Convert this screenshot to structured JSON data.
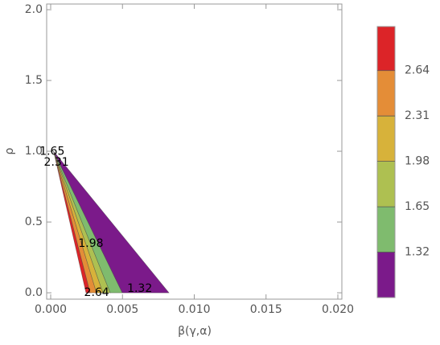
{
  "chart_data": {
    "type": "contour",
    "xlabel": "β(γ,α)",
    "ylabel": "ρ",
    "xlim": [
      -0.00028,
      0.02028
    ],
    "ylim": [
      -0.045,
      2.04
    ],
    "xticks": [
      {
        "value": 0,
        "label": "0.000"
      },
      {
        "value": 0.005,
        "label": "0.005"
      },
      {
        "value": 0.01,
        "label": "0.010"
      },
      {
        "value": 0.015,
        "label": "0.015"
      },
      {
        "value": 0.02,
        "label": "0.020"
      }
    ],
    "yticks": [
      {
        "value": 0,
        "label": "0.0"
      },
      {
        "value": 0.5,
        "label": "0.5"
      },
      {
        "value": 1,
        "label": "1.0"
      },
      {
        "value": 1.5,
        "label": "1.5"
      },
      {
        "value": 2,
        "label": "2.0"
      }
    ],
    "apex": {
      "x": 0.0002,
      "y": 1.0
    },
    "edges": [
      0.00246,
      0.00275,
      0.00319,
      0.00364,
      0.00415,
      0.00499,
      0.00824
    ],
    "contour_labels": [
      {
        "level": 1.65,
        "x": 0.0001,
        "y": 0.997
      },
      {
        "level": 2.31,
        "x": 0.0004,
        "y": 0.92
      },
      {
        "level": 1.98,
        "x": 0.0028,
        "y": 0.347
      },
      {
        "level": 2.64,
        "x": 0.0032,
        "y": 0.0
      },
      {
        "level": 1.32,
        "x": 0.0062,
        "y": 0.028
      }
    ],
    "colorbar": {
      "lim": [
        0.99,
        2.96
      ],
      "levels": [
        0.99,
        1.32,
        1.65,
        1.98,
        2.31,
        2.64,
        2.96
      ],
      "ticks": [
        1.32,
        1.65,
        1.98,
        2.31,
        2.64
      ],
      "colors": [
        "#7b1a8a",
        "#7fbb6e",
        "#aec051",
        "#d7b23a",
        "#e48d37",
        "#dc2428"
      ]
    }
  }
}
